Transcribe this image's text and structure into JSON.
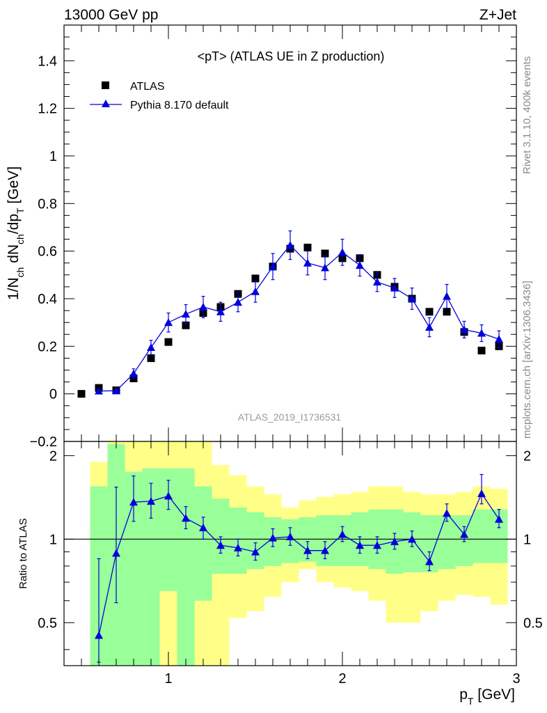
{
  "header": {
    "left": "13000 GeV pp",
    "right": "Z+Jet"
  },
  "side_labels": {
    "top": "Rivet 3.1.10,  400k events",
    "bottom": "mcplots.cern.ch [arXiv:1306.3436]"
  },
  "chart_data": [
    {
      "type": "scatter",
      "title": "<pT> (ATLAS UE in Z production)",
      "watermark": "ATLAS_2019_I1736531",
      "ylabel": "1/N_ch dN_ch/dp_T [GeV]",
      "ylim": [
        -0.2,
        1.55
      ],
      "xlim": [
        0.4,
        3.0
      ],
      "yticks": [
        "0",
        "0.2",
        "0.4",
        "0.6",
        "0.8",
        "1",
        "1.2",
        "1.4"
      ],
      "ytick_bottom": "−0.2",
      "legend_position": "top-left",
      "series": [
        {
          "name": "ATLAS",
          "marker": "square",
          "color": "#000000",
          "x": [
            0.5,
            0.6,
            0.7,
            0.8,
            0.9,
            1.0,
            1.1,
            1.2,
            1.3,
            1.4,
            1.5,
            1.6,
            1.7,
            1.8,
            1.9,
            2.0,
            2.1,
            2.2,
            2.3,
            2.4,
            2.5,
            2.6,
            2.7,
            2.8,
            2.9
          ],
          "y": [
            0.0,
            0.025,
            0.015,
            0.065,
            0.15,
            0.218,
            0.288,
            0.34,
            0.365,
            0.42,
            0.485,
            0.535,
            0.61,
            0.615,
            0.59,
            0.57,
            0.57,
            0.5,
            0.45,
            0.4,
            0.345,
            0.345,
            0.26,
            0.182,
            0.2
          ]
        },
        {
          "name": "Pythia 8.170 default",
          "marker": "triangle",
          "color": "#0000dd",
          "x": [
            0.6,
            0.7,
            0.8,
            0.9,
            1.0,
            1.1,
            1.2,
            1.3,
            1.4,
            1.5,
            1.6,
            1.7,
            1.8,
            1.9,
            2.0,
            2.1,
            2.2,
            2.3,
            2.4,
            2.5,
            2.6,
            2.7,
            2.8,
            2.9
          ],
          "y": [
            0.012,
            0.013,
            0.085,
            0.195,
            0.3,
            0.335,
            0.365,
            0.345,
            0.385,
            0.43,
            0.535,
            0.625,
            0.55,
            0.53,
            0.595,
            0.54,
            0.47,
            0.445,
            0.4,
            0.28,
            0.41,
            0.27,
            0.255,
            0.23
          ],
          "err": [
            0.005,
            0.005,
            0.02,
            0.03,
            0.04,
            0.04,
            0.045,
            0.04,
            0.04,
            0.045,
            0.055,
            0.06,
            0.05,
            0.05,
            0.055,
            0.045,
            0.04,
            0.04,
            0.045,
            0.04,
            0.05,
            0.035,
            0.035,
            0.035
          ]
        }
      ]
    },
    {
      "type": "line",
      "ylabel": "Ratio to ATLAS",
      "xlabel": "p_T [GeV]",
      "xlim": [
        0.4,
        3.0
      ],
      "ylim": [
        0.35,
        2.25
      ],
      "log_y": true,
      "xticks": [
        "1",
        "2",
        "3"
      ],
      "yticks": [
        "0.5",
        "1",
        "2"
      ],
      "reference_line": 1,
      "bands": {
        "x_edges": [
          0.55,
          0.65,
          0.75,
          0.85,
          0.95,
          1.05,
          1.15,
          1.25,
          1.35,
          1.45,
          1.55,
          1.65,
          1.75,
          1.85,
          1.95,
          2.05,
          2.15,
          2.25,
          2.35,
          2.45,
          2.55,
          2.65,
          2.75,
          2.85,
          2.95
        ],
        "green_low": [
          0.3,
          0.3,
          0.3,
          0.3,
          0.65,
          0.3,
          0.6,
          0.75,
          0.75,
          0.78,
          0.8,
          0.82,
          0.83,
          0.8,
          0.8,
          0.8,
          0.78,
          0.75,
          0.76,
          0.76,
          0.78,
          0.8,
          0.82,
          0.82
        ],
        "green_high": [
          1.55,
          2.2,
          1.75,
          1.8,
          1.8,
          1.8,
          1.55,
          1.4,
          1.3,
          1.25,
          1.2,
          1.18,
          1.2,
          1.22,
          1.22,
          1.25,
          1.28,
          1.28,
          1.25,
          1.22,
          1.22,
          1.22,
          1.28,
          1.28
        ],
        "yellow_low": [
          0.3,
          0.3,
          0.3,
          0.3,
          0.3,
          0.3,
          0.3,
          0.3,
          0.52,
          0.55,
          0.62,
          0.7,
          0.78,
          0.7,
          0.67,
          0.65,
          0.6,
          0.5,
          0.5,
          0.55,
          0.6,
          0.63,
          0.62,
          0.58
        ],
        "yellow_high": [
          1.9,
          2.3,
          2.3,
          2.3,
          2.3,
          2.3,
          2.3,
          1.85,
          1.7,
          1.55,
          1.45,
          1.3,
          1.38,
          1.42,
          1.45,
          1.48,
          1.55,
          1.55,
          1.48,
          1.45,
          1.45,
          1.48,
          1.55,
          1.52
        ]
      },
      "series": [
        {
          "name": "Pythia 8.170 default",
          "color": "#0000dd",
          "x": [
            0.6,
            0.7,
            0.8,
            0.9,
            1.0,
            1.1,
            1.2,
            1.3,
            1.4,
            1.5,
            1.6,
            1.7,
            1.8,
            1.9,
            2.0,
            2.1,
            2.2,
            2.3,
            2.4,
            2.5,
            2.6,
            2.7,
            2.8,
            2.9
          ],
          "y": [
            0.45,
            0.89,
            1.36,
            1.37,
            1.43,
            1.19,
            1.1,
            0.95,
            0.93,
            0.9,
            1.01,
            1.02,
            0.91,
            0.91,
            1.04,
            0.95,
            0.95,
            0.98,
            1.0,
            0.83,
            1.24,
            1.04,
            1.46,
            1.18
          ],
          "err_low": [
            0.09,
            0.3,
            0.2,
            0.18,
            0.15,
            0.1,
            0.1,
            0.06,
            0.06,
            0.06,
            0.07,
            0.07,
            0.06,
            0.06,
            0.06,
            0.06,
            0.06,
            0.06,
            0.06,
            0.06,
            0.08,
            0.06,
            0.12,
            0.08
          ],
          "err_high": [
            0.4,
            0.65,
            0.33,
            0.22,
            0.2,
            0.12,
            0.1,
            0.07,
            0.07,
            0.07,
            0.08,
            0.08,
            0.07,
            0.07,
            0.07,
            0.07,
            0.07,
            0.07,
            0.07,
            0.07,
            0.1,
            0.07,
            0.25,
            0.1
          ]
        }
      ]
    }
  ]
}
